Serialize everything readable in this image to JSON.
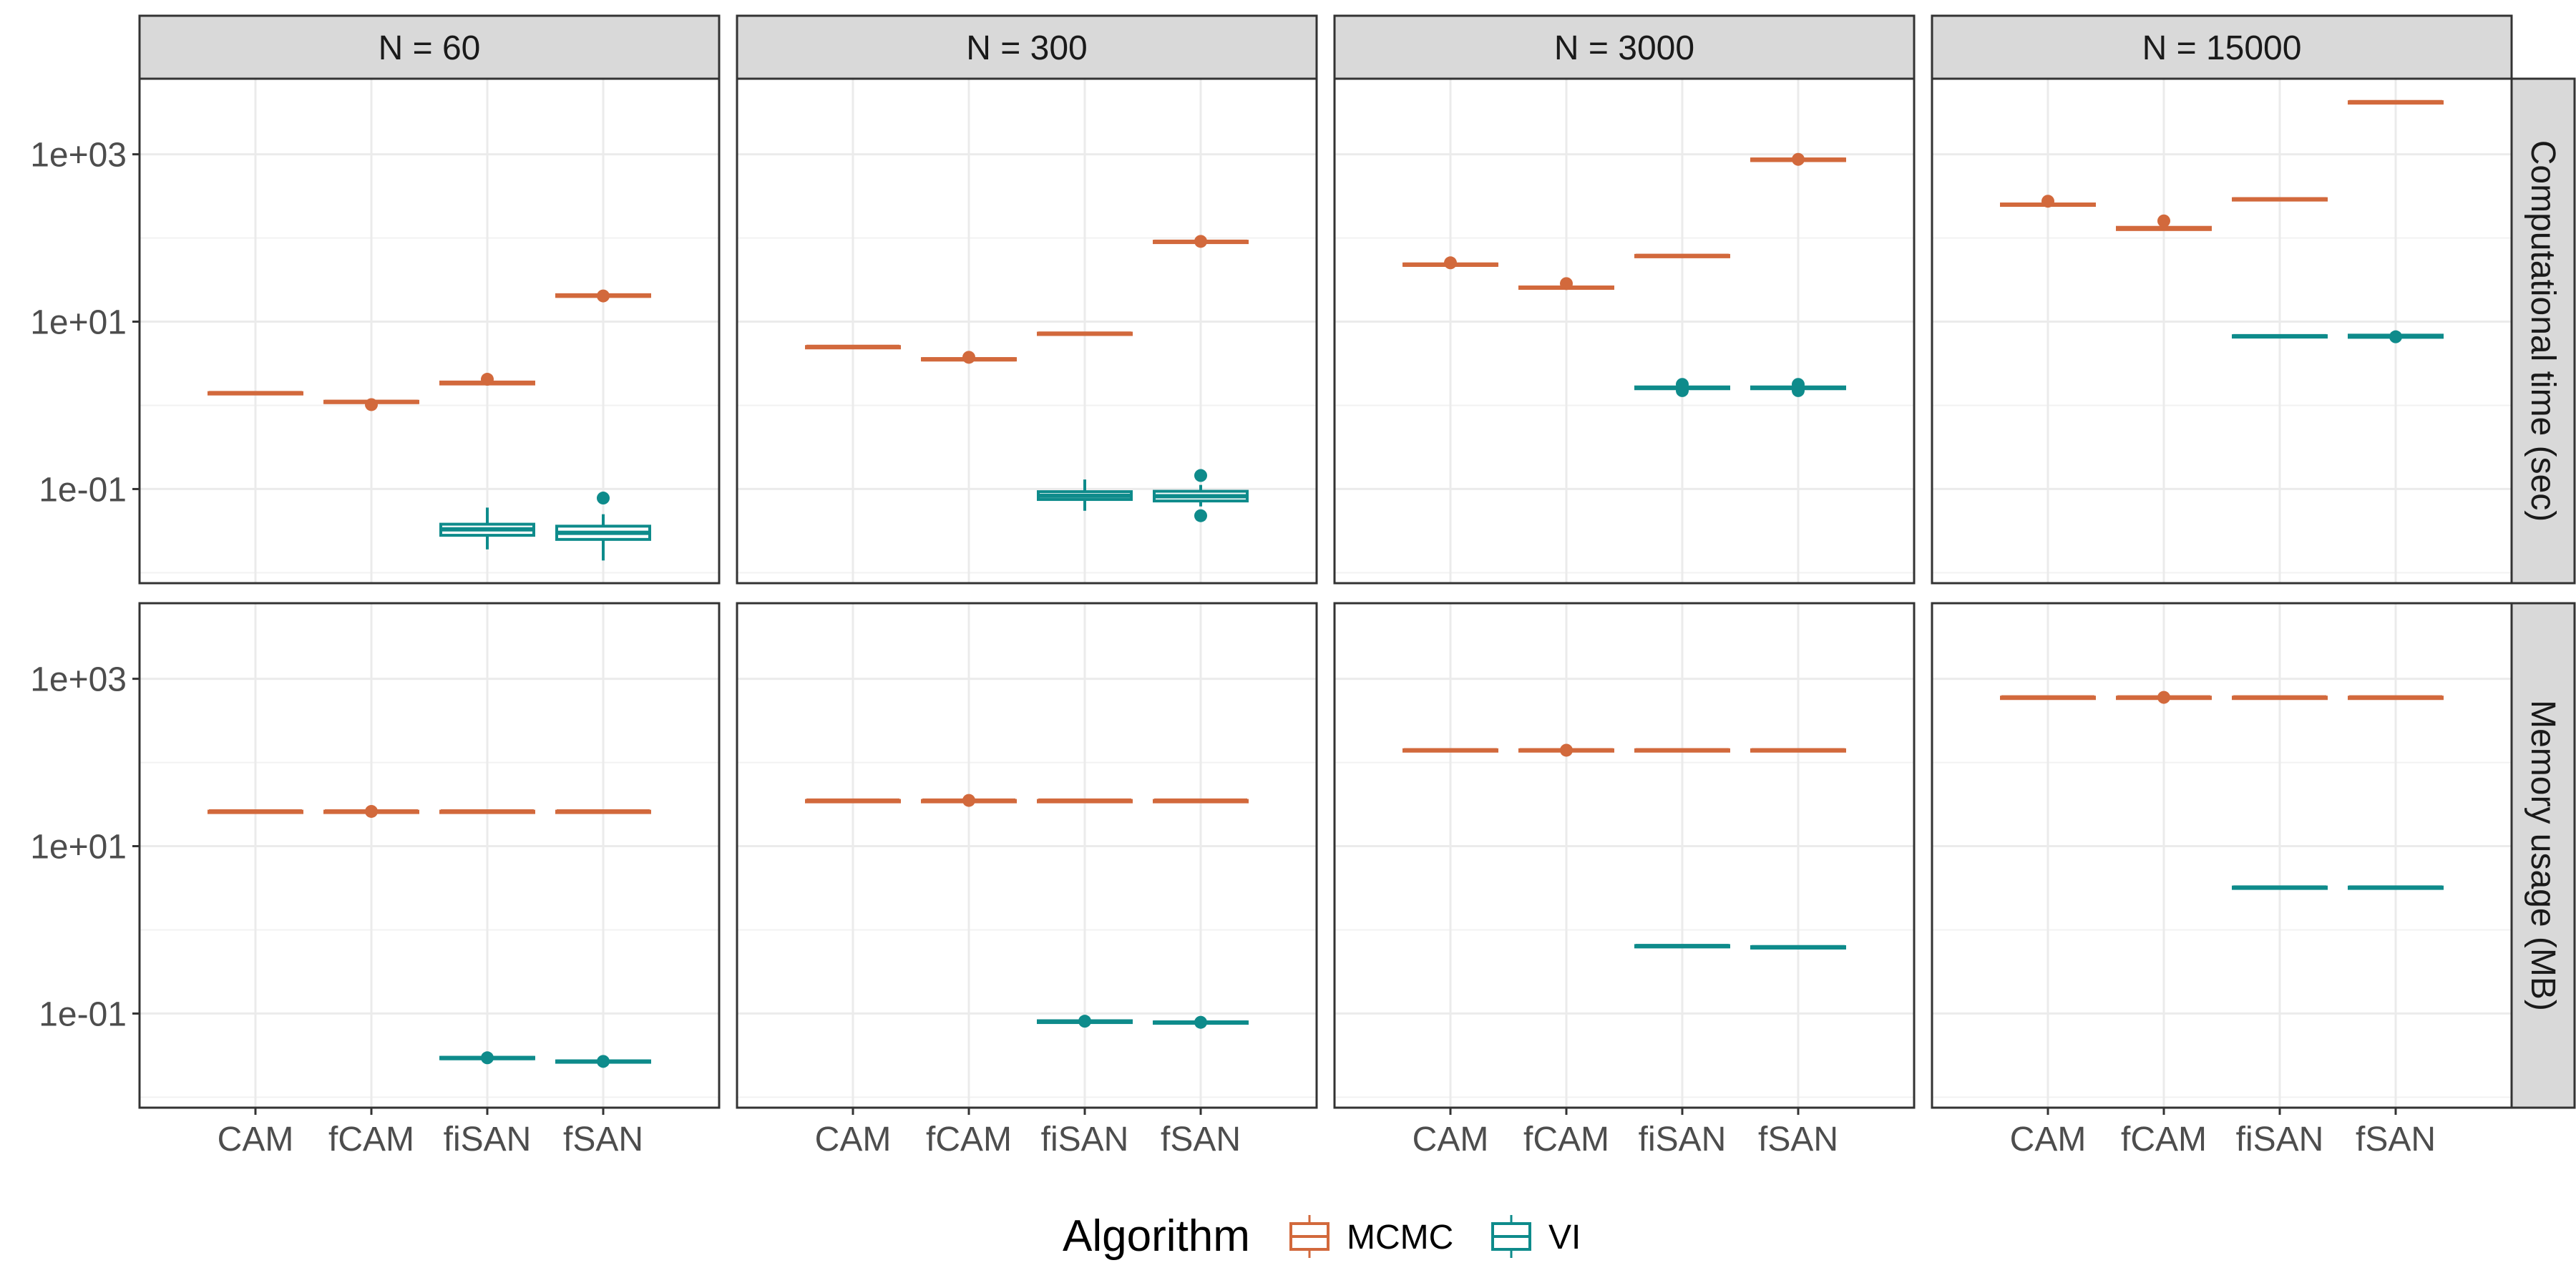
{
  "chart_data": {
    "type": "box",
    "facet_columns": [
      "N = 60",
      "N = 300",
      "N = 3000",
      "N = 15000"
    ],
    "facet_rows": [
      "Computational time (sec)",
      "Memory usage (MB)"
    ],
    "categories": [
      "CAM",
      "fCAM",
      "fiSAN",
      "fSAN"
    ],
    "y_scale": "log10",
    "y_ticks": [
      {
        "value": 1000,
        "label": "1e+03"
      },
      {
        "value": 10,
        "label": "1e+01"
      },
      {
        "value": 0.1,
        "label": "1e-01"
      }
    ],
    "ylim": [
      0.0075,
      8000
    ],
    "grid": true,
    "legend": {
      "title": "Algorithm",
      "position": "bottom",
      "entries": [
        {
          "name": "MCMC",
          "color": "#D2693C"
        },
        {
          "name": "VI",
          "color": "#0E8B8B"
        }
      ]
    },
    "series": [
      {
        "name": "MCMC",
        "color": "#D2693C"
      },
      {
        "name": "VI",
        "color": "#0E8B8B"
      }
    ],
    "panels": [
      {
        "row": 0,
        "col": 0,
        "boxes": [
          {
            "category": "CAM",
            "series": "MCMC",
            "q1": 1.38,
            "median": 1.4,
            "q3": 1.42,
            "lower": 1.37,
            "upper": 1.43,
            "outliers": []
          },
          {
            "category": "fCAM",
            "series": "MCMC",
            "q1": 1.08,
            "median": 1.1,
            "q3": 1.12,
            "lower": 1.06,
            "upper": 1.14,
            "outliers": [
              1.02
            ]
          },
          {
            "category": "fiSAN",
            "series": "MCMC",
            "q1": 1.8,
            "median": 1.85,
            "q3": 1.9,
            "lower": 1.78,
            "upper": 1.95,
            "outliers": [
              2.05
            ]
          },
          {
            "category": "fiSAN",
            "series": "VI",
            "q1": 0.028,
            "median": 0.033,
            "q3": 0.038,
            "lower": 0.019,
            "upper": 0.06,
            "outliers": []
          },
          {
            "category": "fSAN",
            "series": "MCMC",
            "q1": 20.0,
            "median": 20.5,
            "q3": 21.0,
            "lower": 19.5,
            "upper": 21.5,
            "outliers": [
              20.3
            ]
          },
          {
            "category": "fSAN",
            "series": "VI",
            "q1": 0.025,
            "median": 0.03,
            "q3": 0.036,
            "lower": 0.014,
            "upper": 0.05,
            "outliers": [
              0.078
            ]
          }
        ]
      },
      {
        "row": 0,
        "col": 1,
        "boxes": [
          {
            "category": "CAM",
            "series": "MCMC",
            "q1": 4.95,
            "median": 5.0,
            "q3": 5.05,
            "lower": 4.9,
            "upper": 5.1,
            "outliers": []
          },
          {
            "category": "fCAM",
            "series": "MCMC",
            "q1": 3.48,
            "median": 3.55,
            "q3": 3.62,
            "lower": 3.42,
            "upper": 3.68,
            "outliers": [
              3.75
            ]
          },
          {
            "category": "fiSAN",
            "series": "MCMC",
            "q1": 7.1,
            "median": 7.2,
            "q3": 7.3,
            "lower": 7.0,
            "upper": 7.4,
            "outliers": []
          },
          {
            "category": "fiSAN",
            "series": "VI",
            "q1": 0.075,
            "median": 0.083,
            "q3": 0.093,
            "lower": 0.055,
            "upper": 0.13,
            "outliers": []
          },
          {
            "category": "fSAN",
            "series": "MCMC",
            "q1": 89.0,
            "median": 90.0,
            "q3": 91.5,
            "lower": 87.5,
            "upper": 93.0,
            "outliers": [
              91.0
            ]
          },
          {
            "category": "fSAN",
            "series": "VI",
            "q1": 0.072,
            "median": 0.082,
            "q3": 0.094,
            "lower": 0.062,
            "upper": 0.112,
            "outliers": [
              0.145,
              0.048
            ]
          }
        ]
      },
      {
        "row": 0,
        "col": 2,
        "boxes": [
          {
            "category": "CAM",
            "series": "MCMC",
            "q1": 47.0,
            "median": 48.0,
            "q3": 49.0,
            "lower": 46.5,
            "upper": 49.5,
            "outliers": [
              50.5
            ]
          },
          {
            "category": "fCAM",
            "series": "MCMC",
            "q1": 25.0,
            "median": 25.5,
            "q3": 26.0,
            "lower": 24.5,
            "upper": 26.5,
            "outliers": [
              28.5
            ]
          },
          {
            "category": "fiSAN",
            "series": "MCMC",
            "q1": 60.0,
            "median": 61.0,
            "q3": 62.0,
            "lower": 59.0,
            "upper": 63.0,
            "outliers": []
          },
          {
            "category": "fiSAN",
            "series": "VI",
            "q1": 1.58,
            "median": 1.62,
            "q3": 1.66,
            "lower": 1.52,
            "upper": 1.7,
            "outliers": [
              1.78,
              1.5
            ]
          },
          {
            "category": "fSAN",
            "series": "MCMC",
            "q1": 840,
            "median": 860,
            "q3": 880,
            "lower": 820,
            "upper": 900,
            "outliers": [
              870
            ]
          },
          {
            "category": "fSAN",
            "series": "VI",
            "q1": 1.58,
            "median": 1.62,
            "q3": 1.66,
            "lower": 1.52,
            "upper": 1.7,
            "outliers": [
              1.78,
              1.5
            ]
          }
        ]
      },
      {
        "row": 0,
        "col": 3,
        "boxes": [
          {
            "category": "CAM",
            "series": "MCMC",
            "q1": 245,
            "median": 250,
            "q3": 255,
            "lower": 240,
            "upper": 260,
            "outliers": [
              275
            ]
          },
          {
            "category": "fCAM",
            "series": "MCMC",
            "q1": 126,
            "median": 130,
            "q3": 134,
            "lower": 122,
            "upper": 140,
            "outliers": [
              160
            ]
          },
          {
            "category": "fiSAN",
            "series": "MCMC",
            "q1": 285,
            "median": 290,
            "q3": 295,
            "lower": 280,
            "upper": 300,
            "outliers": []
          },
          {
            "category": "fiSAN",
            "series": "VI",
            "q1": 6.6,
            "median": 6.7,
            "q3": 6.8,
            "lower": 6.5,
            "upper": 6.9,
            "outliers": []
          },
          {
            "category": "fSAN",
            "series": "MCMC",
            "q1": 4150,
            "median": 4200,
            "q3": 4250,
            "lower": 4100,
            "upper": 4300,
            "outliers": []
          },
          {
            "category": "fSAN",
            "series": "VI",
            "q1": 6.5,
            "median": 6.7,
            "q3": 6.9,
            "lower": 6.4,
            "upper": 7.0,
            "outliers": [
              6.6
            ]
          }
        ]
      },
      {
        "row": 1,
        "col": 0,
        "boxes": [
          {
            "category": "CAM",
            "series": "MCMC",
            "q1": 25.8,
            "median": 26.0,
            "q3": 26.2,
            "lower": 25.6,
            "upper": 26.4,
            "outliers": []
          },
          {
            "category": "fCAM",
            "series": "MCMC",
            "q1": 25.8,
            "median": 26.0,
            "q3": 26.2,
            "lower": 25.6,
            "upper": 26.4,
            "outliers": [
              26.0
            ]
          },
          {
            "category": "fiSAN",
            "series": "MCMC",
            "q1": 25.8,
            "median": 26.0,
            "q3": 26.2,
            "lower": 25.6,
            "upper": 26.4,
            "outliers": []
          },
          {
            "category": "fiSAN",
            "series": "VI",
            "q1": 0.0288,
            "median": 0.0294,
            "q3": 0.03,
            "lower": 0.0284,
            "upper": 0.0304,
            "outliers": [
              0.0296
            ]
          },
          {
            "category": "fSAN",
            "series": "MCMC",
            "q1": 25.8,
            "median": 26.0,
            "q3": 26.2,
            "lower": 25.6,
            "upper": 26.4,
            "outliers": []
          },
          {
            "category": "fSAN",
            "series": "VI",
            "q1": 0.0262,
            "median": 0.0267,
            "q3": 0.0272,
            "lower": 0.0258,
            "upper": 0.0276,
            "outliers": [
              0.0268
            ]
          }
        ]
      },
      {
        "row": 1,
        "col": 1,
        "boxes": [
          {
            "category": "CAM",
            "series": "MCMC",
            "q1": 34.8,
            "median": 35.0,
            "q3": 35.2,
            "lower": 34.6,
            "upper": 35.4,
            "outliers": []
          },
          {
            "category": "fCAM",
            "series": "MCMC",
            "q1": 34.8,
            "median": 35.0,
            "q3": 35.2,
            "lower": 34.6,
            "upper": 35.4,
            "outliers": [
              35.2
            ]
          },
          {
            "category": "fiSAN",
            "series": "MCMC",
            "q1": 34.8,
            "median": 35.0,
            "q3": 35.2,
            "lower": 34.6,
            "upper": 35.4,
            "outliers": []
          },
          {
            "category": "fiSAN",
            "series": "VI",
            "q1": 0.078,
            "median": 0.08,
            "q3": 0.082,
            "lower": 0.077,
            "upper": 0.083,
            "outliers": [
              0.081
            ]
          },
          {
            "category": "fSAN",
            "series": "MCMC",
            "q1": 34.8,
            "median": 35.0,
            "q3": 35.2,
            "lower": 34.6,
            "upper": 35.4,
            "outliers": []
          },
          {
            "category": "fSAN",
            "series": "VI",
            "q1": 0.0765,
            "median": 0.078,
            "q3": 0.0795,
            "lower": 0.0755,
            "upper": 0.0805,
            "outliers": [
              0.0785
            ]
          }
        ]
      },
      {
        "row": 1,
        "col": 2,
        "boxes": [
          {
            "category": "CAM",
            "series": "MCMC",
            "q1": 138,
            "median": 140,
            "q3": 142,
            "lower": 136,
            "upper": 144,
            "outliers": []
          },
          {
            "category": "fCAM",
            "series": "MCMC",
            "q1": 138,
            "median": 140,
            "q3": 142,
            "lower": 136,
            "upper": 144,
            "outliers": [
              140
            ]
          },
          {
            "category": "fiSAN",
            "series": "MCMC",
            "q1": 138,
            "median": 140,
            "q3": 142,
            "lower": 136,
            "upper": 144,
            "outliers": []
          },
          {
            "category": "fiSAN",
            "series": "VI",
            "q1": 0.63,
            "median": 0.64,
            "q3": 0.65,
            "lower": 0.62,
            "upper": 0.66,
            "outliers": []
          },
          {
            "category": "fSAN",
            "series": "MCMC",
            "q1": 138,
            "median": 140,
            "q3": 142,
            "lower": 136,
            "upper": 144,
            "outliers": []
          },
          {
            "category": "fSAN",
            "series": "VI",
            "q1": 0.61,
            "median": 0.62,
            "q3": 0.63,
            "lower": 0.6,
            "upper": 0.64,
            "outliers": []
          }
        ]
      },
      {
        "row": 1,
        "col": 3,
        "boxes": [
          {
            "category": "CAM",
            "series": "MCMC",
            "q1": 596,
            "median": 600,
            "q3": 604,
            "lower": 592,
            "upper": 608,
            "outliers": []
          },
          {
            "category": "fCAM",
            "series": "MCMC",
            "q1": 596,
            "median": 600,
            "q3": 604,
            "lower": 592,
            "upper": 608,
            "outliers": [
              600
            ]
          },
          {
            "category": "fiSAN",
            "series": "MCMC",
            "q1": 596,
            "median": 600,
            "q3": 604,
            "lower": 592,
            "upper": 608,
            "outliers": []
          },
          {
            "category": "fiSAN",
            "series": "VI",
            "q1": 3.15,
            "median": 3.2,
            "q3": 3.25,
            "lower": 3.1,
            "upper": 3.3,
            "outliers": []
          },
          {
            "category": "fSAN",
            "series": "MCMC",
            "q1": 596,
            "median": 600,
            "q3": 604,
            "lower": 592,
            "upper": 608,
            "outliers": []
          },
          {
            "category": "fSAN",
            "series": "VI",
            "q1": 3.15,
            "median": 3.2,
            "q3": 3.25,
            "lower": 3.1,
            "upper": 3.3,
            "outliers": []
          }
        ]
      }
    ]
  }
}
